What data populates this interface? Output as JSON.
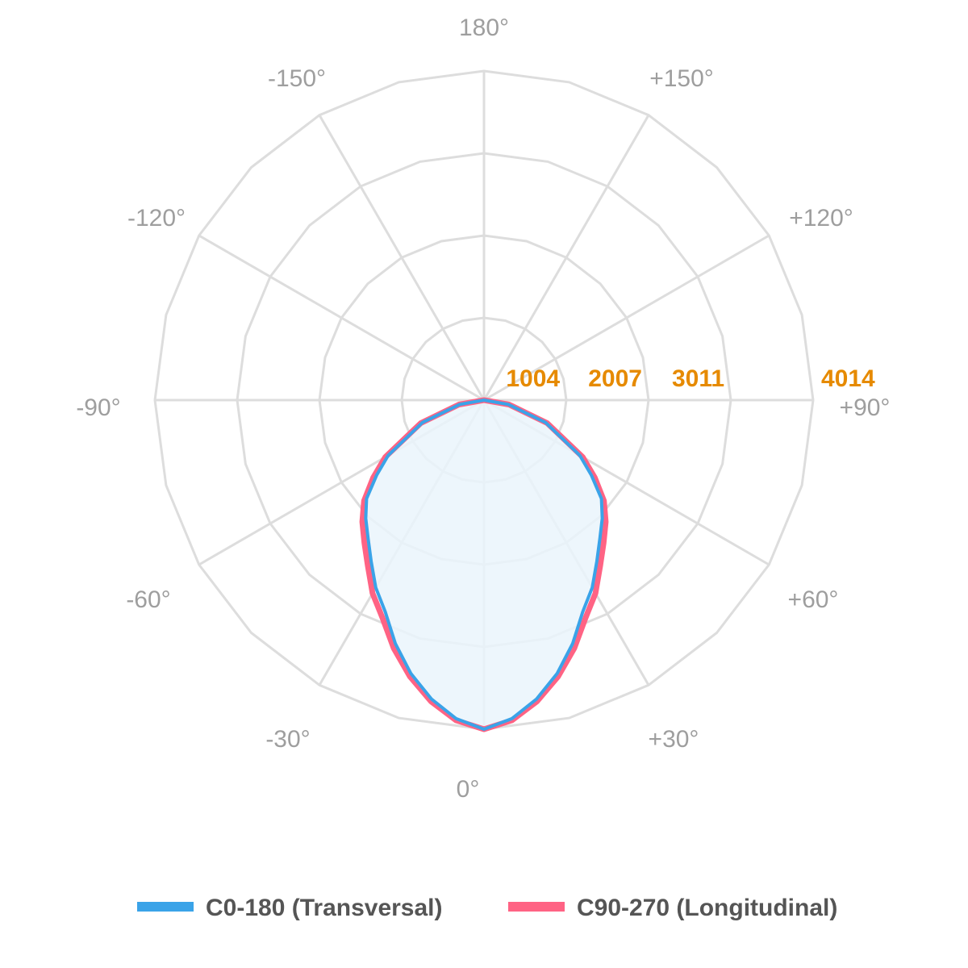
{
  "chart_data": {
    "type": "polar-line",
    "title": "",
    "colors": {
      "c0": "#3aa3e8",
      "c90": "#ff6384",
      "grid": "#dddddd",
      "fill": "#eaf4fc"
    },
    "angle_labels": [
      {
        "deg": 180,
        "text": "180°"
      },
      {
        "deg": 150,
        "text": "+150°"
      },
      {
        "deg": 120,
        "text": "+120°"
      },
      {
        "deg": 90,
        "text": "+90°"
      },
      {
        "deg": 60,
        "text": "+60°"
      },
      {
        "deg": 30,
        "text": "+30°"
      },
      {
        "deg": 0,
        "text": "0°"
      },
      {
        "deg": -30,
        "text": "-30°"
      },
      {
        "deg": -60,
        "text": "-60°"
      },
      {
        "deg": -90,
        "text": "-90°"
      },
      {
        "deg": -120,
        "text": "-120°"
      },
      {
        "deg": -150,
        "text": "-150°"
      }
    ],
    "radial_ticks": [
      1004,
      2007,
      3011,
      4014
    ],
    "r_max": 4014,
    "legend": {
      "position": "bottom"
    },
    "series": [
      {
        "name": "C0-180 (Transversal)",
        "color": "#3aa3e8",
        "points": [
          [
            -90,
            0
          ],
          [
            -80,
            300
          ],
          [
            -70,
            800
          ],
          [
            -60,
            1350
          ],
          [
            -55,
            1600
          ],
          [
            -50,
            1870
          ],
          [
            -45,
            2040
          ],
          [
            -40,
            2200
          ],
          [
            -35,
            2400
          ],
          [
            -30,
            2640
          ],
          [
            -25,
            2850
          ],
          [
            -20,
            3160
          ],
          [
            -15,
            3450
          ],
          [
            -10,
            3700
          ],
          [
            -5,
            3900
          ],
          [
            0,
            4014
          ],
          [
            5,
            3900
          ],
          [
            10,
            3700
          ],
          [
            15,
            3450
          ],
          [
            20,
            3160
          ],
          [
            25,
            2850
          ],
          [
            30,
            2640
          ],
          [
            35,
            2400
          ],
          [
            40,
            2200
          ],
          [
            45,
            2040
          ],
          [
            50,
            1870
          ],
          [
            55,
            1600
          ],
          [
            60,
            1350
          ],
          [
            70,
            800
          ],
          [
            80,
            300
          ],
          [
            90,
            0
          ]
        ]
      },
      {
        "name": "C90-270 (Longitudinal)",
        "color": "#ff6384",
        "points": [
          [
            -90,
            0
          ],
          [
            -80,
            310
          ],
          [
            -70,
            820
          ],
          [
            -60,
            1390
          ],
          [
            -55,
            1650
          ],
          [
            -50,
            1910
          ],
          [
            -45,
            2100
          ],
          [
            -40,
            2270
          ],
          [
            -35,
            2470
          ],
          [
            -30,
            2720
          ],
          [
            -25,
            2930
          ],
          [
            -20,
            3220
          ],
          [
            -15,
            3490
          ],
          [
            -10,
            3730
          ],
          [
            -5,
            3920
          ],
          [
            0,
            4014
          ],
          [
            5,
            3920
          ],
          [
            10,
            3730
          ],
          [
            15,
            3490
          ],
          [
            20,
            3220
          ],
          [
            25,
            2930
          ],
          [
            30,
            2720
          ],
          [
            35,
            2470
          ],
          [
            40,
            2270
          ],
          [
            45,
            2100
          ],
          [
            50,
            1910
          ],
          [
            55,
            1650
          ],
          [
            60,
            1390
          ],
          [
            70,
            820
          ],
          [
            80,
            310
          ],
          [
            90,
            0
          ]
        ]
      }
    ]
  }
}
